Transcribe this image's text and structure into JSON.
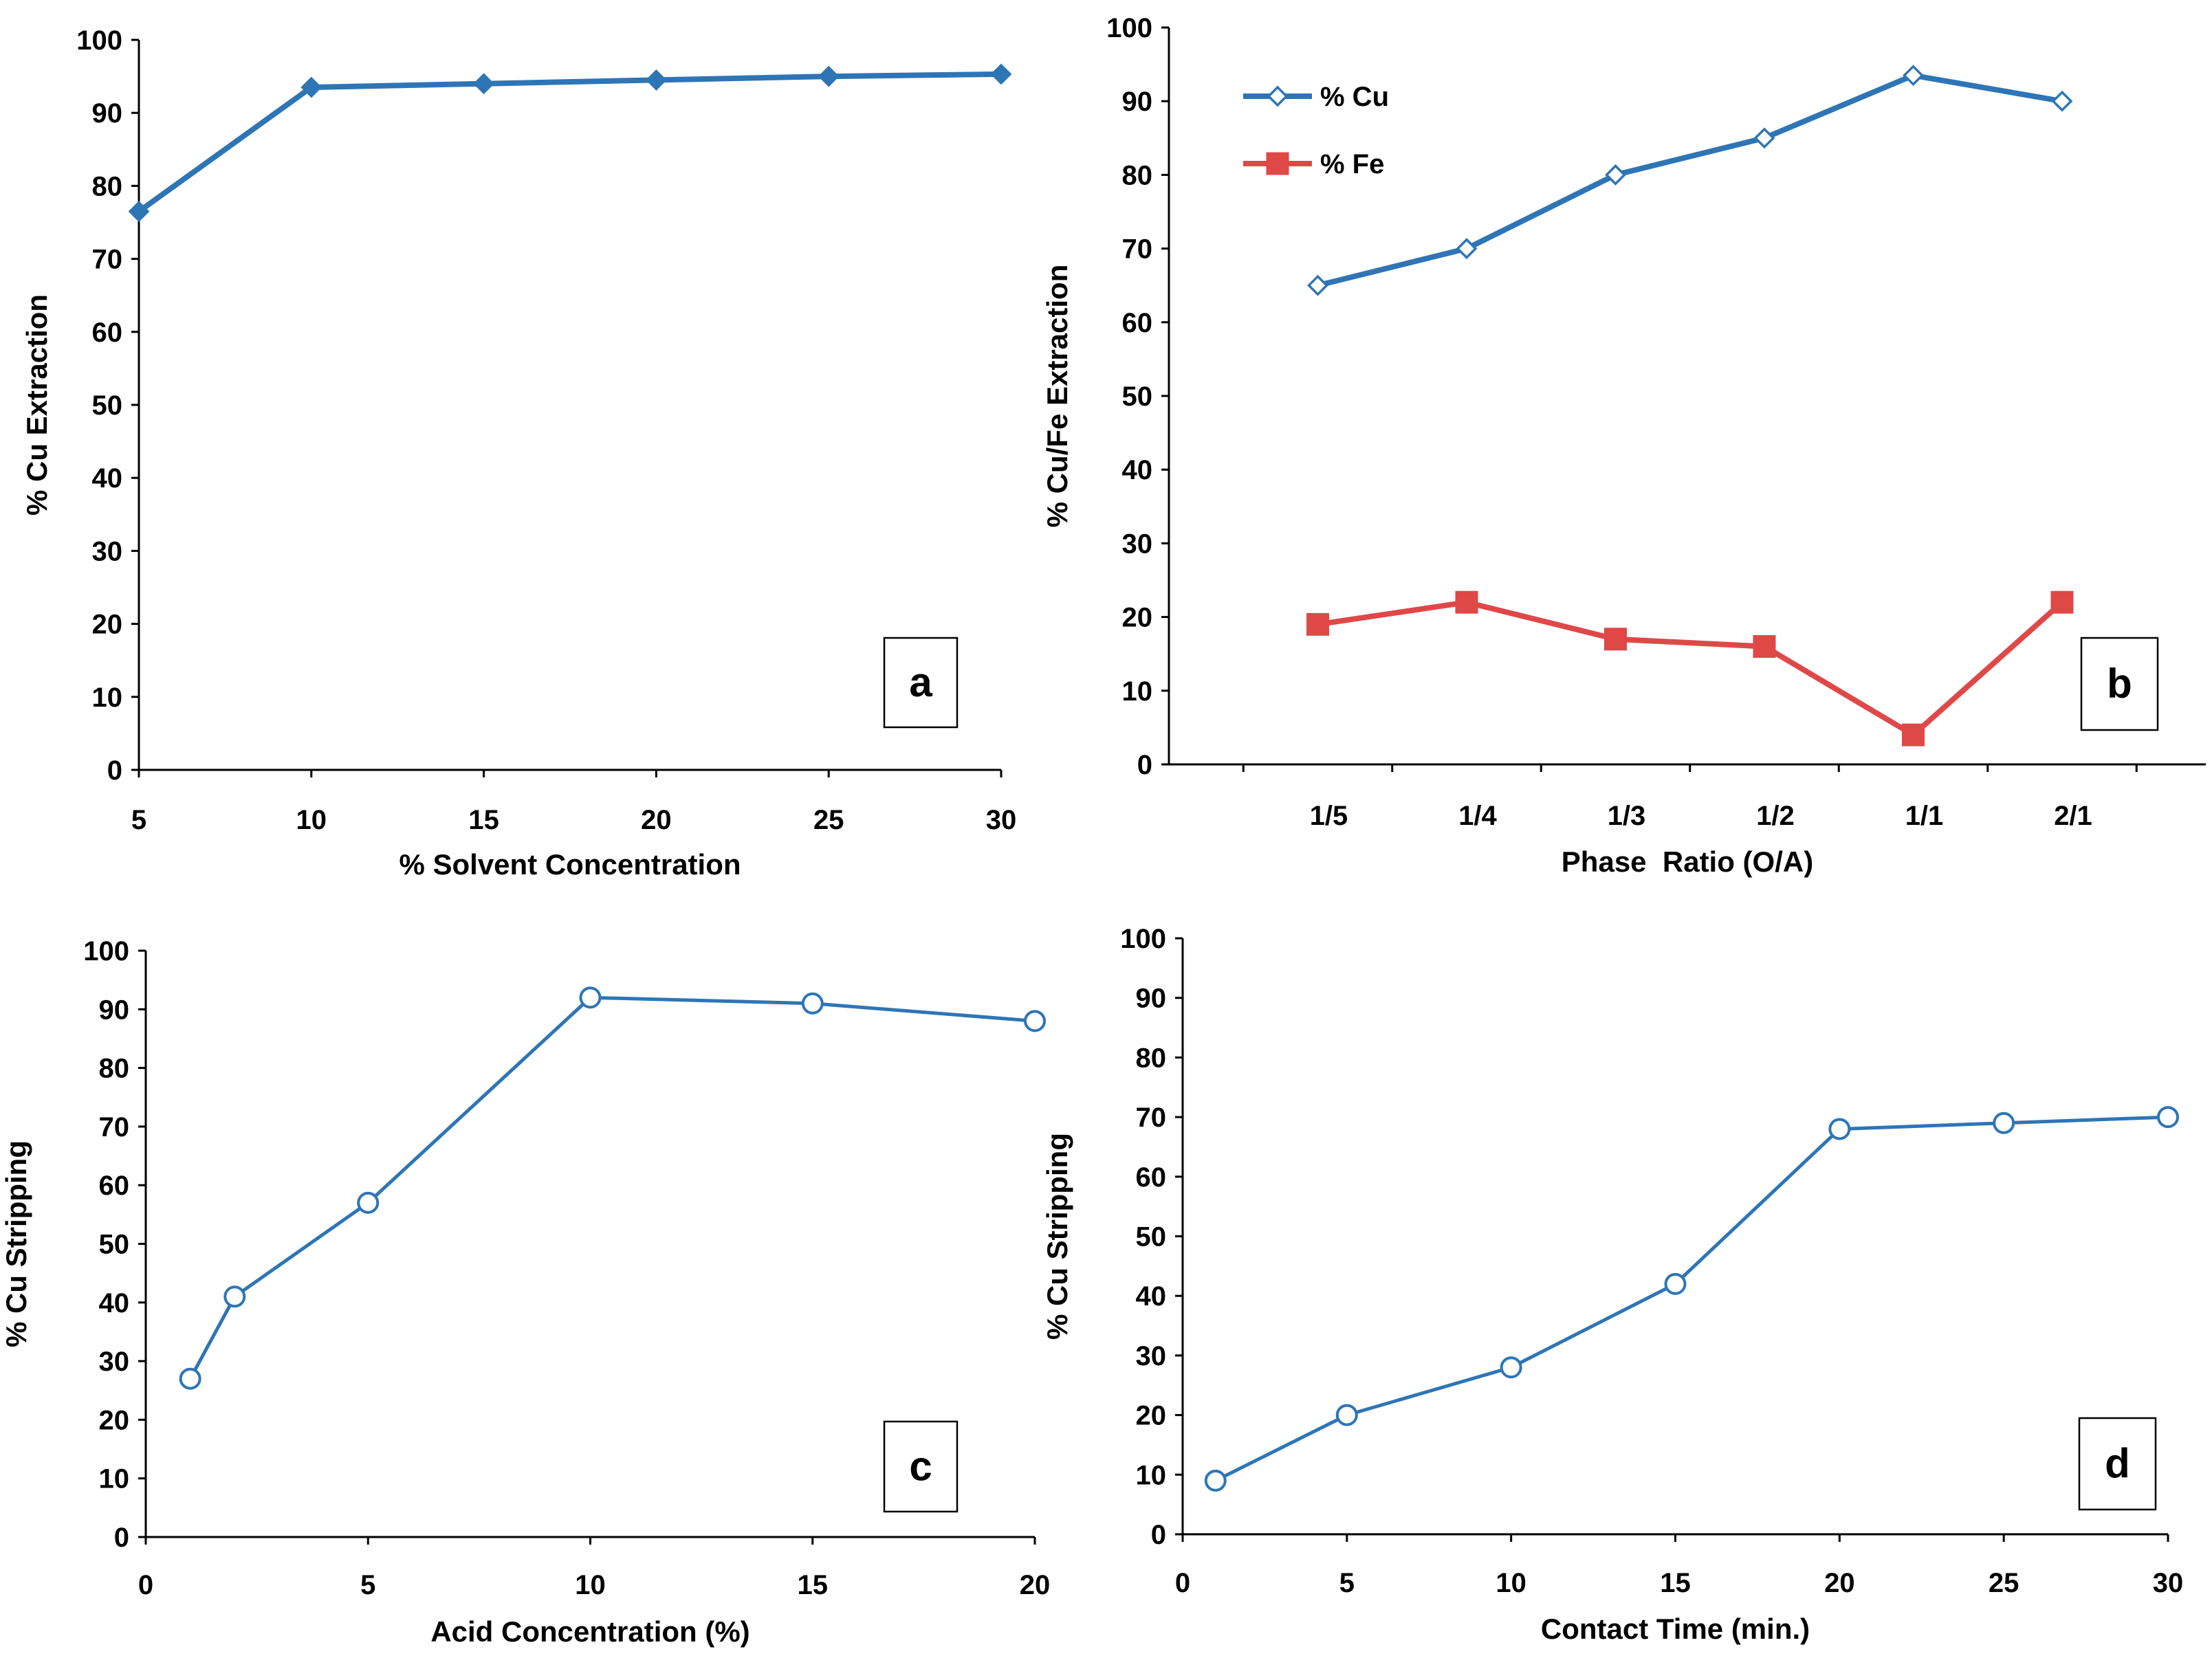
{
  "chart_data": [
    {
      "panel": "a",
      "type": "line",
      "xlabel": "% Solvent Concentration",
      "ylabel": "% Cu Extraction",
      "x": [
        5,
        10,
        15,
        20,
        25,
        30
      ],
      "x_tick_labels": [
        "5",
        "10",
        "15",
        "20",
        "25",
        "30"
      ],
      "xlim": [
        5,
        30
      ],
      "ylim": [
        0,
        100
      ],
      "y_ticks": [
        0,
        10,
        20,
        30,
        40,
        50,
        60,
        70,
        80,
        90,
        100
      ],
      "series": [
        {
          "name": "% Cu",
          "values": [
            76.5,
            93.5,
            94,
            94.5,
            95,
            95.3
          ],
          "color": "#2E75B6",
          "marker": "diamond-filled"
        }
      ]
    },
    {
      "panel": "b",
      "type": "line",
      "xlabel": "Phase  Ratio (O/A)",
      "ylabel": "% Cu/Fe Extraction",
      "categories": [
        "1/5",
        "1/4",
        "1/3",
        "1/2",
        "1/1",
        "2/1"
      ],
      "ylim": [
        0,
        100
      ],
      "y_ticks": [
        0,
        10,
        20,
        30,
        40,
        50,
        60,
        70,
        80,
        90,
        100
      ],
      "legend": {
        "position": "top-left",
        "entries": [
          "% Cu",
          "% Fe"
        ]
      },
      "series": [
        {
          "name": "% Cu",
          "values": [
            65,
            70,
            80,
            85,
            93.5,
            90
          ],
          "color": "#2E75B6",
          "marker": "diamond-open"
        },
        {
          "name": "% Fe",
          "values": [
            19,
            22,
            17,
            16,
            4,
            22
          ],
          "color": "#E04848",
          "marker": "square-filled"
        }
      ]
    },
    {
      "panel": "c",
      "type": "line",
      "xlabel": "Acid Concentration (%)",
      "ylabel": "% Cu Stripping",
      "x": [
        1,
        2,
        5,
        10,
        15,
        20
      ],
      "x_ticks": [
        0,
        5,
        10,
        15,
        20
      ],
      "xlim": [
        0,
        20
      ],
      "ylim": [
        0,
        100
      ],
      "y_ticks": [
        0,
        10,
        20,
        30,
        40,
        50,
        60,
        70,
        80,
        90,
        100
      ],
      "series": [
        {
          "name": "% Cu",
          "values": [
            27,
            41,
            57,
            92,
            91,
            88
          ],
          "color": "#2E75B6",
          "marker": "circle-open"
        }
      ]
    },
    {
      "panel": "d",
      "type": "line",
      "xlabel": "Contact Time (min.)",
      "ylabel": "% Cu Stripping",
      "x": [
        1,
        5,
        10,
        15,
        20,
        25,
        30
      ],
      "x_ticks": [
        0,
        5,
        10,
        15,
        20,
        25,
        30
      ],
      "xlim": [
        0,
        30
      ],
      "ylim": [
        0,
        100
      ],
      "y_ticks": [
        0,
        10,
        20,
        30,
        40,
        50,
        60,
        70,
        80,
        90,
        100
      ],
      "series": [
        {
          "name": "% Cu",
          "values": [
            9,
            20,
            28,
            42,
            68,
            69,
            70
          ],
          "color": "#2E75B6",
          "marker": "circle-open"
        }
      ]
    }
  ]
}
